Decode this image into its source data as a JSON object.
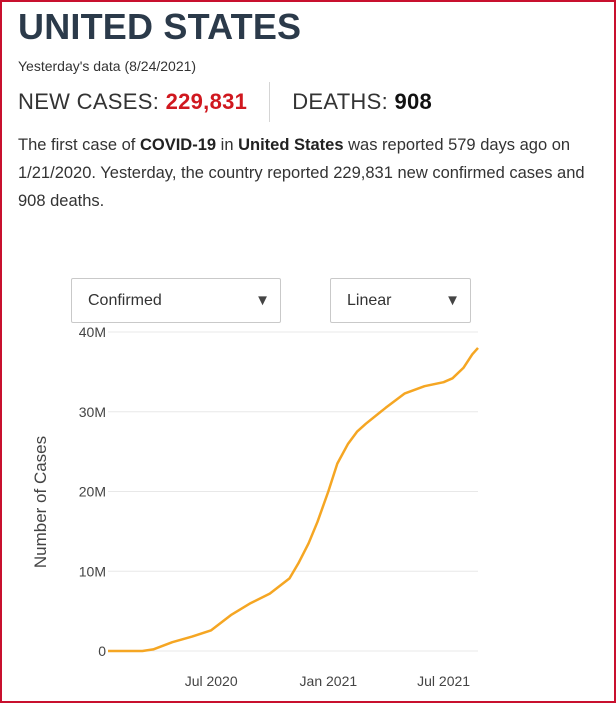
{
  "country": "UNITED STATES",
  "as_of": "Yesterday's data (8/24/2021)",
  "stats": {
    "new_cases_label": "NEW CASES:",
    "new_cases_value": "229,831",
    "deaths_label": "DEATHS:",
    "deaths_value": "908"
  },
  "summary": {
    "p1": "The first case of ",
    "disease": "COVID-19",
    "p2": " in ",
    "country": "United States",
    "p3": " was reported 579 days ago on 1/21/2020. Yesterday, the country reported 229,831 new confirmed cases and 908 deaths."
  },
  "controls": {
    "metric_selected": "Confirmed",
    "scale_selected": "Linear"
  },
  "colors": {
    "line": "#f5a623",
    "accent_red": "#d0181f",
    "title": "#2b3a4a"
  },
  "chart_data": {
    "type": "line",
    "ylabel": "Number of Cases",
    "xlabel": "",
    "y_ticks": [
      0,
      10000000,
      20000000,
      30000000,
      40000000
    ],
    "y_tick_labels": [
      "0",
      "10M",
      "20M",
      "30M",
      "40M"
    ],
    "ylim": [
      0,
      40000000
    ],
    "xlim": [
      "2020-01-21",
      "2021-08-24"
    ],
    "x_ticks": [
      "2020-07-01",
      "2021-01-01",
      "2021-07-01"
    ],
    "x_tick_labels": [
      "Jul 2020",
      "Jan 2021",
      "Jul 2021"
    ],
    "grid": "horizontal",
    "series": [
      {
        "values": [
          [
            "2020-01-21",
            0
          ],
          [
            "2020-03-15",
            3000
          ],
          [
            "2020-04-01",
            200000
          ],
          [
            "2020-05-01",
            1100000
          ],
          [
            "2020-06-01",
            1800000
          ],
          [
            "2020-07-01",
            2600000
          ],
          [
            "2020-08-01",
            4500000
          ],
          [
            "2020-09-01",
            6000000
          ],
          [
            "2020-10-01",
            7200000
          ],
          [
            "2020-11-01",
            9100000
          ],
          [
            "2020-11-15",
            11000000
          ],
          [
            "2020-12-01",
            13500000
          ],
          [
            "2020-12-15",
            16200000
          ],
          [
            "2021-01-01",
            20000000
          ],
          [
            "2021-01-15",
            23500000
          ],
          [
            "2021-02-01",
            26000000
          ],
          [
            "2021-02-15",
            27500000
          ],
          [
            "2021-03-01",
            28500000
          ],
          [
            "2021-04-01",
            30500000
          ],
          [
            "2021-05-01",
            32300000
          ],
          [
            "2021-06-01",
            33200000
          ],
          [
            "2021-07-01",
            33700000
          ],
          [
            "2021-07-15",
            34200000
          ],
          [
            "2021-08-01",
            35500000
          ],
          [
            "2021-08-15",
            37200000
          ],
          [
            "2021-08-24",
            38000000
          ]
        ]
      }
    ]
  }
}
